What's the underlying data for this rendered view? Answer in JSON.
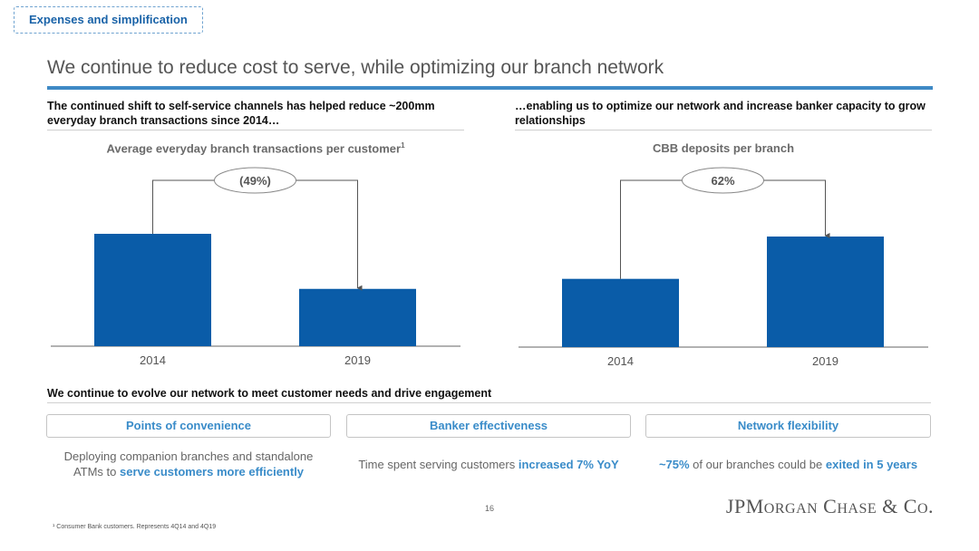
{
  "section_tag": "Expenses and simplification",
  "page_title": "We continue to reduce cost to serve, while optimizing our branch network",
  "left_column": {
    "heading": "The continued shift to self-service channels has helped reduce ~200mm everyday branch transactions since 2014…",
    "chart_title": "Average everyday branch transactions per customer",
    "chart_title_footnote_mark": "1",
    "change_label": "(49%)"
  },
  "right_column": {
    "heading": "…enabling us to optimize our network and increase banker capacity to grow relationships",
    "chart_title": "CBB deposits per branch",
    "change_label": "62%"
  },
  "chart_data": [
    {
      "type": "bar",
      "title": "Average everyday branch transactions per customer",
      "categories": [
        "2014",
        "2019"
      ],
      "values": [
        1.0,
        0.51
      ],
      "value_basis": "indexed to 2014",
      "change_annotation": "(49%)",
      "color": "#0a5ca8",
      "grid": false
    },
    {
      "type": "bar",
      "title": "CBB deposits per branch",
      "categories": [
        "2014",
        "2019"
      ],
      "values": [
        1.0,
        1.62
      ],
      "value_basis": "indexed to 2014",
      "change_annotation": "62%",
      "color": "#0a5ca8",
      "grid": false
    }
  ],
  "evolve": {
    "heading": "We continue to evolve our network to meet customer needs and drive engagement",
    "pillars": [
      {
        "title": "Points of convenience",
        "desc_plain": "Deploying companion branches and standalone ATMs to ",
        "desc_bold": "serve customers more efficiently"
      },
      {
        "title": "Banker effectiveness",
        "desc_plain": "Time spent serving customers ",
        "desc_bold": "increased 7% YoY"
      },
      {
        "title": "Network flexibility",
        "desc_bold_lead": "~75%",
        "desc_plain": " of our branches could be ",
        "desc_bold": "exited in 5 years"
      }
    ]
  },
  "footer": {
    "page_number": "16",
    "logo": "JPMorgan Chase & Co.",
    "footnote": "¹ Consumer Bank customers. Represents 4Q14 and 4Q19"
  },
  "colors": {
    "accent": "#3f8ac5",
    "bar": "#0a5ca8",
    "highlight_text": "#3a8cc9"
  }
}
